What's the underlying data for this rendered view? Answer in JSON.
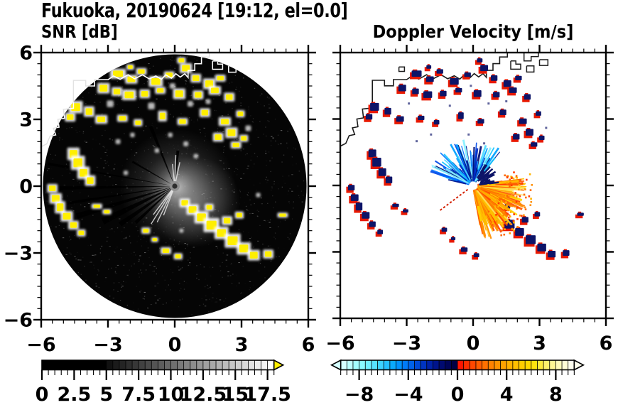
{
  "title": "Fukuoka, 20190624 [19:12, el=0.0]",
  "panels": {
    "snr": {
      "subtitle": "SNR [dB]"
    },
    "velocity": {
      "subtitle": "Doppler Velocity [m/s]"
    }
  },
  "axes": {
    "xlim": [
      -6,
      6
    ],
    "ylim": [
      -6,
      6
    ],
    "major_ticks": [
      -6,
      -3,
      0,
      3,
      6
    ],
    "minor_step": 0.5,
    "xtick_labels": [
      "−6",
      "−3",
      "0",
      "3",
      "6"
    ],
    "ytick_labels": [
      "6",
      "3",
      "0",
      "−3",
      "−6"
    ]
  },
  "colorbars": {
    "snr": {
      "range": [
        0,
        18
      ],
      "minor_step": 0.5,
      "major_tick_values": [
        0,
        2.5,
        5,
        7.5,
        10,
        12.5,
        15,
        17.5
      ],
      "labels": [
        "0",
        "2.5",
        "5",
        "7.5",
        "10",
        "12.5",
        "15",
        "17.5"
      ],
      "over_arrow_color": "#ffef00",
      "cells": [
        "#000000",
        "#000000",
        "#000000",
        "#000000",
        "#000000",
        "#000000",
        "#000000",
        "#000000",
        "#000000",
        "#000000",
        "#111111",
        "#1b1b1b",
        "#242424",
        "#2e2e2e",
        "#373737",
        "#414141",
        "#4a4a4a",
        "#545454",
        "#5d5d5d",
        "#676767",
        "#707070",
        "#7a7a7a",
        "#838383",
        "#8d8d8d",
        "#969696",
        "#a0a0a0",
        "#a9a9a9",
        "#b3b3b3",
        "#bcbcbc",
        "#c6c6c6",
        "#cfcfcf",
        "#d9d9d9",
        "#e2e2e2",
        "#ececec",
        "#f5f5f5",
        "#ffffff"
      ]
    },
    "velocity": {
      "range": [
        -9.5,
        9.5
      ],
      "minor_step": 0.5,
      "major_tick_values": [
        -8,
        -4,
        0,
        4,
        8
      ],
      "labels": [
        "−8",
        "−4",
        "0",
        "4",
        "8"
      ],
      "under_arrow_color": "#d6ffff",
      "over_arrow_color": "#ffffee",
      "cells_negative": [
        "#d6ffff",
        "#bdffff",
        "#a3ffff",
        "#8afbff",
        "#70f0ff",
        "#57e2ff",
        "#3dd2ff",
        "#24c0ff",
        "#0aaaff",
        "#0092ff",
        "#007af8",
        "#0062ea",
        "#004ad8",
        "#0034c2",
        "#0022a8",
        "#00148c",
        "#000a70",
        "#000458",
        "#000044"
      ],
      "cells_positive": [
        "#ff1500",
        "#ff2e00",
        "#ff4700",
        "#ff5c00",
        "#ff7000",
        "#ff8200",
        "#ff9300",
        "#ffa300",
        "#ffb200",
        "#ffc000",
        "#ffcd00",
        "#ffd900",
        "#ffe30e",
        "#ffeb3d",
        "#fff16b",
        "#fff694",
        "#fffab8",
        "#fffdd6",
        "#ffffee"
      ]
    }
  },
  "chart_data": [
    {
      "type": "heatmap",
      "title": "SNR [dB]",
      "xlim": [
        -6,
        6
      ],
      "ylim": [
        -6,
        6
      ],
      "units": "dB",
      "colormap": "grayscale 0-18 dB, yellow above 18 dB",
      "background": "black radar scan circle, radius ~6",
      "notable": "ground-clutter echoes (SNR>18, yellow with white fringe) along the coastline and city; bright receiver-noise glow and dark blocked-beam spokes at radar centre; white coastline overlay",
      "echo_patches": [
        [
          -2.55,
          5.05,
          0.45,
          0.28
        ],
        [
          -1.95,
          4.8,
          0.35,
          0.25
        ],
        [
          -1.5,
          5.15,
          0.3,
          0.2
        ],
        [
          -0.85,
          4.7,
          0.4,
          0.3
        ],
        [
          -0.25,
          5.0,
          0.3,
          0.2
        ],
        [
          0.5,
          5.3,
          0.35,
          0.28
        ],
        [
          0.95,
          4.85,
          0.3,
          0.25
        ],
        [
          1.55,
          4.6,
          0.35,
          0.3
        ],
        [
          2.05,
          4.85,
          0.3,
          0.2
        ],
        [
          0.3,
          5.65,
          0.25,
          0.18
        ],
        [
          -2.0,
          5.35,
          0.22,
          0.16
        ],
        [
          -3.2,
          4.4,
          0.35,
          0.3
        ],
        [
          -2.6,
          4.25,
          0.3,
          0.25
        ],
        [
          -2.05,
          4.1,
          0.4,
          0.3
        ],
        [
          -1.35,
          4.15,
          0.3,
          0.25
        ],
        [
          -0.65,
          4.3,
          0.3,
          0.2
        ],
        [
          0.2,
          4.15,
          0.35,
          0.3
        ],
        [
          1.05,
          4.1,
          0.3,
          0.25
        ],
        [
          1.8,
          4.3,
          0.35,
          0.25
        ],
        [
          2.45,
          4.0,
          0.3,
          0.25
        ],
        [
          -4.45,
          3.55,
          0.4,
          0.35
        ],
        [
          -3.85,
          3.35,
          0.3,
          0.3
        ],
        [
          -4.7,
          3.1,
          0.3,
          0.25
        ],
        [
          -3.3,
          3.0,
          0.35,
          0.25
        ],
        [
          -2.35,
          3.05,
          0.3,
          0.2
        ],
        [
          -1.65,
          2.85,
          0.25,
          0.2
        ],
        [
          -0.55,
          3.15,
          0.25,
          0.3
        ],
        [
          0.35,
          2.9,
          0.3,
          0.2
        ],
        [
          1.35,
          3.3,
          0.3,
          0.25
        ],
        [
          2.25,
          2.9,
          0.35,
          0.25
        ],
        [
          2.95,
          3.25,
          0.25,
          0.2
        ],
        [
          1.95,
          2.2,
          0.3,
          0.25
        ],
        [
          2.55,
          2.4,
          0.35,
          0.3
        ],
        [
          3.1,
          2.15,
          0.25,
          0.2
        ],
        [
          2.75,
          1.85,
          0.3,
          0.2
        ],
        [
          -4.55,
          1.45,
          0.35,
          0.35
        ],
        [
          -4.35,
          1.05,
          0.4,
          0.4
        ],
        [
          -4.1,
          0.6,
          0.35,
          0.35
        ],
        [
          -3.8,
          0.25,
          0.3,
          0.3
        ],
        [
          -5.5,
          -0.1,
          0.3,
          0.25
        ],
        [
          -5.35,
          -0.55,
          0.35,
          0.3
        ],
        [
          -5.15,
          -0.95,
          0.3,
          0.35
        ],
        [
          -4.85,
          -1.35,
          0.35,
          0.3
        ],
        [
          -4.55,
          -1.75,
          0.3,
          0.25
        ],
        [
          -4.2,
          -2.1,
          0.25,
          0.2
        ],
        [
          -3.5,
          -0.9,
          0.3,
          0.15
        ],
        [
          -3.05,
          -1.15,
          0.25,
          0.15
        ],
        [
          0.45,
          -0.75,
          0.3,
          0.25
        ],
        [
          0.8,
          -1.05,
          0.35,
          0.3
        ],
        [
          1.2,
          -1.4,
          0.4,
          0.35
        ],
        [
          1.65,
          -1.75,
          0.45,
          0.4
        ],
        [
          2.1,
          -2.1,
          0.4,
          0.35
        ],
        [
          2.6,
          -2.45,
          0.45,
          0.4
        ],
        [
          3.1,
          -2.8,
          0.4,
          0.35
        ],
        [
          3.55,
          -3.1,
          0.35,
          0.3
        ],
        [
          4.2,
          -3.05,
          0.3,
          0.25
        ],
        [
          2.35,
          -1.55,
          0.3,
          0.25
        ],
        [
          2.9,
          -1.3,
          0.25,
          0.2
        ],
        [
          1.55,
          -0.95,
          0.25,
          0.2
        ],
        [
          4.85,
          -1.3,
          0.3,
          0.14
        ],
        [
          -0.4,
          -2.9,
          0.3,
          0.2
        ],
        [
          0.15,
          -3.15,
          0.25,
          0.18
        ],
        [
          -1.3,
          -2.0,
          0.25,
          0.18
        ],
        [
          -0.9,
          -2.4,
          0.2,
          0.14
        ]
      ],
      "gray_patches": [
        [
          -0.1,
          4.5,
          0.25
        ],
        [
          -1.05,
          3.6,
          0.3
        ],
        [
          0.7,
          3.7,
          0.25
        ],
        [
          -2.9,
          3.7,
          0.3
        ],
        [
          1.5,
          3.8,
          0.22
        ],
        [
          3.3,
          2.6,
          0.25
        ],
        [
          -0.2,
          2.3,
          0.2
        ],
        [
          0.5,
          1.9,
          0.22
        ],
        [
          -1.9,
          2.3,
          0.2
        ],
        [
          -2.55,
          2.0,
          0.22
        ],
        [
          0.95,
          1.35,
          0.2
        ],
        [
          -0.8,
          1.6,
          0.2
        ],
        [
          3.75,
          -0.4,
          0.2
        ],
        [
          0.3,
          -2.0,
          0.18
        ],
        [
          -2.2,
          0.6,
          0.2
        ]
      ],
      "coastline": [
        [
          -6.05,
          1.75
        ],
        [
          -5.75,
          1.9
        ],
        [
          -5.6,
          2.25
        ],
        [
          -5.35,
          2.3
        ],
        [
          -5.45,
          2.6
        ],
        [
          -5.2,
          2.65
        ],
        [
          -5.25,
          3.0
        ],
        [
          -4.95,
          3.05
        ],
        [
          -5.0,
          3.45
        ],
        [
          -4.55,
          3.5
        ],
        [
          -4.55,
          4.75
        ],
        [
          -4.0,
          4.75
        ],
        [
          -4.0,
          4.5
        ],
        [
          -3.6,
          4.5
        ],
        [
          -3.6,
          4.78
        ],
        [
          -3.0,
          4.78
        ],
        [
          -2.75,
          4.95
        ],
        [
          -2.45,
          4.8
        ],
        [
          -2.1,
          5.0
        ],
        [
          -1.8,
          4.82
        ],
        [
          -1.45,
          5.0
        ],
        [
          -1.15,
          4.82
        ],
        [
          -0.85,
          4.95
        ],
        [
          -0.6,
          4.8
        ],
        [
          -0.4,
          5.0
        ],
        [
          -0.15,
          4.85
        ],
        [
          0.05,
          5.05
        ],
        [
          0.25,
          4.9
        ],
        [
          0.45,
          5.05
        ],
        [
          0.6,
          4.88
        ],
        [
          0.6,
          5.2
        ],
        [
          0.9,
          5.2
        ],
        [
          0.9,
          5.5
        ],
        [
          1.2,
          5.5
        ],
        [
          1.2,
          5.8
        ],
        [
          1.55,
          5.8
        ],
        [
          1.55,
          6.05
        ]
      ],
      "ports": [
        [
          [
            1.7,
            5.62
          ],
          [
            1.7,
            5.25
          ],
          [
            2.15,
            5.25
          ],
          [
            2.15,
            5.48
          ],
          [
            1.93,
            5.48
          ],
          [
            1.93,
            5.62
          ],
          [
            1.7,
            5.62
          ]
        ],
        [
          [
            2.3,
            6.05
          ],
          [
            2.3,
            5.62
          ],
          [
            2.62,
            5.62
          ],
          [
            2.62,
            5.82
          ],
          [
            2.95,
            5.82
          ],
          [
            2.95,
            6.05
          ]
        ],
        [
          [
            2.42,
            5.4
          ],
          [
            2.75,
            5.4
          ],
          [
            2.75,
            5.12
          ],
          [
            2.42,
            5.12
          ],
          [
            2.42,
            5.4
          ]
        ],
        [
          [
            3.0,
            5.68
          ],
          [
            3.38,
            5.68
          ],
          [
            3.38,
            5.42
          ],
          [
            3.0,
            5.42
          ],
          [
            3.0,
            5.68
          ]
        ],
        [
          [
            -3.35,
            5.35
          ],
          [
            -3.1,
            5.35
          ],
          [
            -3.1,
            5.15
          ],
          [
            -3.35,
            5.15
          ],
          [
            -3.35,
            5.35
          ]
        ]
      ],
      "dark_spokes": [
        [
          112,
          2.9,
          5
        ],
        [
          150,
          2.2,
          3
        ],
        [
          170,
          5.8,
          4
        ],
        [
          181,
          5.9,
          6
        ],
        [
          189,
          5.8,
          5
        ],
        [
          197,
          4.6,
          8
        ],
        [
          206,
          3.6,
          10
        ],
        [
          215,
          3.0,
          7
        ],
        [
          223,
          2.4,
          5
        ],
        [
          85,
          1.6,
          4
        ]
      ],
      "bright_rays": [
        [
          233,
          1.6
        ],
        [
          238,
          2.0
        ],
        [
          244,
          1.8
        ],
        [
          249,
          1.4
        ],
        [
          78,
          1.1
        ],
        [
          88,
          1.4
        ],
        [
          96,
          1.0
        ]
      ]
    },
    {
      "type": "heatmap",
      "title": "Doppler Velocity [m/s]",
      "xlim": [
        -6,
        6
      ],
      "ylim": [
        -6,
        6
      ],
      "units": "m/s",
      "colormap": "pale-cyan to navy for negative (toward radar), red to cream for positive (away)",
      "notable": "blue/cyan velocity fan up-left of radar, dense orange/amber fan down-right; navy clutter patches with red fringes co-located with SNR clutter; black coastline; white data hole at radar site",
      "clutter_navy": "#0d1468",
      "clutter_red": "#e81800",
      "blue_fan": {
        "angle_min": 50,
        "angle_max": 168,
        "count": 110,
        "len_base": 0.35,
        "len_var": 1.55,
        "palette": [
          "#86f0ff",
          "#4cdcff",
          "#14c4ff",
          "#00a0ff",
          "#0074ff",
          "#0048e8",
          "#0028c0",
          "#001690",
          "#000c70"
        ]
      },
      "orange_fan": {
        "angle_min": -80,
        "angle_max": 8,
        "count": 170,
        "len_base": 0.4,
        "len_var": 1.8,
        "palette": [
          "#ff5a00",
          "#ff7800",
          "#ff9000",
          "#ffa800",
          "#ffc000",
          "#ffd400",
          "#ffe25a",
          "#ff4400"
        ]
      },
      "orange_speckle": {
        "count": 90,
        "r_min": 1.3,
        "r_max": 2.7,
        "angle_min": -65,
        "angle_max": 20,
        "colors": [
          "#ff6a00",
          "#ff9000",
          "#ffb400",
          "#ff3c00"
        ]
      },
      "navy_dashes": {
        "angle_min": 5,
        "angle_max": 60,
        "count": 30,
        "r_min": 0.2,
        "r_max": 0.75
      },
      "red_streak": {
        "angle": 217,
        "r_min": 0.3,
        "r_max": 1.95,
        "color": "#d42000"
      }
    }
  ]
}
